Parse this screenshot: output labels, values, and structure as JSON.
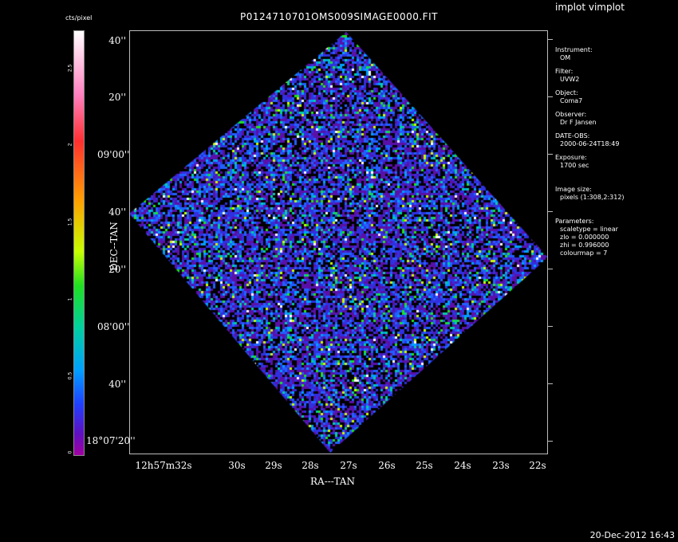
{
  "header": {
    "title": "P0124710701OMS009SIMAGE0000.FIT",
    "app_label": "implot vimplot"
  },
  "footer": {
    "timestamp": "20-Dec-2012 16:43"
  },
  "colorbar": {
    "label": "cts/pixel",
    "ticks": [
      "0",
      "0.5",
      "1",
      "1.5",
      "2",
      "2.5"
    ],
    "colors": [
      "#ffffff",
      "#ff80c0",
      "#ff3030",
      "#ffa000",
      "#c8ff00",
      "#20e020",
      "#00d0a0",
      "#00a0ff",
      "#2040ff",
      "#6010c0",
      "#a000a0"
    ]
  },
  "axes": {
    "xlabel": "RA---TAN",
    "ylabel": "DEC--TAN",
    "yticks": [
      "40''",
      "20''",
      "09'00''",
      "40''",
      "20''",
      "08'00''",
      "40''",
      "18°07'20''"
    ],
    "xticks": [
      "12h57m32s",
      "30s",
      "29s",
      "28s",
      "27s",
      "26s",
      "25s",
      "24s",
      "23s",
      "22s"
    ]
  },
  "info": {
    "instrument_label": "Instrument:",
    "instrument": "OM",
    "filter_label": "Filter:",
    "filter": "UVW2",
    "object_label": "Object:",
    "object": "Coma7",
    "observer_label": "Observer:",
    "observer": "Dr F Jansen",
    "date_label": "DATE-OBS:",
    "date": "2000-06-24T18:49",
    "exposure_label": "Exposure:",
    "exposure": "1700 sec",
    "imgsize_label": "Image size:",
    "imgsize": "pixels (1:308,2:312)",
    "params_label": "Parameters:",
    "scaletype": "scaletype = linear",
    "zlo": "zlo = 0.000000",
    "zhi": "zhi = 0.996000",
    "colourmap": "colourmap = 7"
  }
}
